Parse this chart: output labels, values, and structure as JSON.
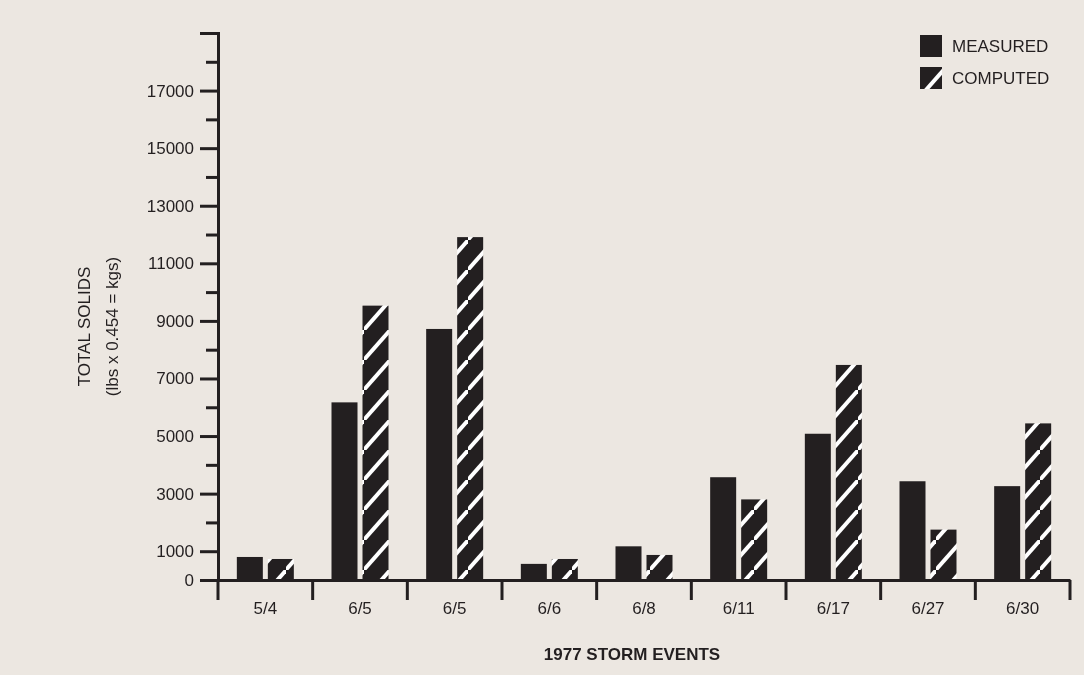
{
  "chart_data": {
    "type": "bar",
    "xlabel": "1977 STORM EVENTS",
    "ylabel": "TOTAL SOLIDS\n(lbs x 0.454 = kgs)",
    "categories": [
      "5/4",
      "6/5",
      "6/5",
      "6/6",
      "6/8",
      "6/11",
      "6/17",
      "6/27",
      "6/30"
    ],
    "series": [
      {
        "name": "MEASURED",
        "color": "#231f20",
        "values": [
          800,
          6170,
          8720,
          560,
          1170,
          3570,
          5080,
          3430,
          3260
        ]
      },
      {
        "name": "COMPUTED",
        "color": "#231f20",
        "values": [
          730,
          9530,
          11910,
          730,
          870,
          2800,
          7470,
          1750,
          5440
        ]
      }
    ],
    "ylim": [
      0,
      19000
    ],
    "yticks": [
      0,
      1000,
      {
        "value": 2000,
        "label": null
      },
      3000,
      {
        "value": 4000,
        "label": null
      },
      5000,
      {
        "value": 6000,
        "label": null
      },
      7000,
      {
        "value": 8000,
        "label": null
      },
      9000,
      {
        "value": 10000,
        "label": null
      },
      11000,
      {
        "value": 12000,
        "label": null
      },
      13000,
      {
        "value": 14000,
        "label": null
      },
      15000,
      {
        "value": 16000,
        "label": null
      },
      17000,
      {
        "value": 18000,
        "label": null
      },
      {
        "value": 19000,
        "label": null
      }
    ],
    "grid": false,
    "legend": "top right"
  }
}
